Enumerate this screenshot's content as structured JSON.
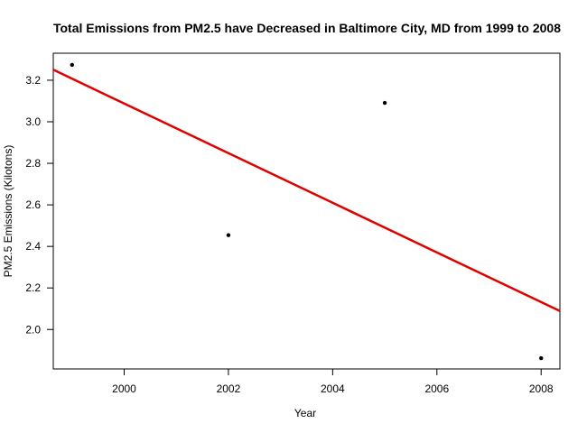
{
  "chart_data": {
    "type": "scatter",
    "title": "Total Emissions from PM2.5 have Decreased in Baltimore City, MD from 1999 to 2008",
    "xlabel": "Year",
    "ylabel": "PM2.5 Emissions (Kilotons)",
    "xlim": [
      1998.64,
      2008.36
    ],
    "ylim": [
      1.81,
      3.33
    ],
    "xticks": [
      2000,
      2002,
      2004,
      2006,
      2008
    ],
    "yticks": [
      2.0,
      2.2,
      2.4,
      2.6,
      2.8,
      3.0,
      3.2
    ],
    "ytick_labels": [
      "2.0",
      "2.2",
      "2.4",
      "2.6",
      "2.8",
      "3.0",
      "3.2"
    ],
    "grid": false,
    "points": [
      {
        "x": 1999,
        "y": 3.274
      },
      {
        "x": 2002,
        "y": 2.454
      },
      {
        "x": 2005,
        "y": 3.091
      },
      {
        "x": 2008,
        "y": 1.862
      }
    ],
    "trend_line": {
      "color": "#e00000",
      "slope": -0.1195,
      "intercept_at_2000": 3.088
    },
    "point_color": "#000000"
  }
}
